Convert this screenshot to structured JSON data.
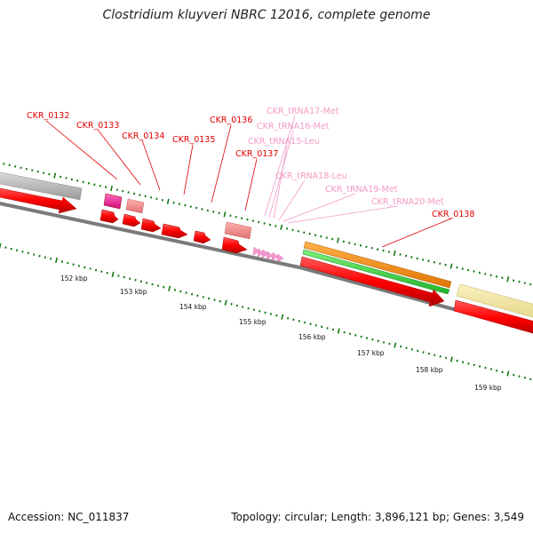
{
  "title": "Clostridium kluyveri NBRC 12016, complete genome",
  "footer": {
    "accession": "Accession: NC_011837",
    "topology": "Topology: circular; Length: 3,896,121 bp; Genes: 3,549"
  },
  "colors": {
    "cds": "#ff0000",
    "trna": "#f58ec8",
    "gene_label": "#e00000",
    "trna_label": "#f39ac6",
    "backbone": "#777777",
    "tick": "#117711"
  },
  "tick_labels": [
    "152 kbp",
    "153 kbp",
    "154 kbp",
    "155 kbp",
    "156 kbp",
    "157 kbp",
    "158 kbp",
    "159 kbp"
  ],
  "gene_labels": [
    {
      "id": "CKR_0132",
      "kind": "gene"
    },
    {
      "id": "CKR_0133",
      "kind": "gene"
    },
    {
      "id": "CKR_0134",
      "kind": "gene"
    },
    {
      "id": "CKR_0135",
      "kind": "gene"
    },
    {
      "id": "CKR_0136",
      "kind": "gene"
    },
    {
      "id": "CKR_0137",
      "kind": "gene"
    },
    {
      "id": "CKR_tRNA17-Met",
      "kind": "trna"
    },
    {
      "id": "CKR_tRNA16-Met",
      "kind": "trna"
    },
    {
      "id": "CKR_tRNA15-Leu",
      "kind": "trna"
    },
    {
      "id": "CKR_tRNA18-Leu",
      "kind": "trna"
    },
    {
      "id": "CKR_tRNA19-Met",
      "kind": "trna"
    },
    {
      "id": "CKR_tRNA20-Met",
      "kind": "trna"
    },
    {
      "id": "CKR_0138",
      "kind": "gene"
    }
  ]
}
